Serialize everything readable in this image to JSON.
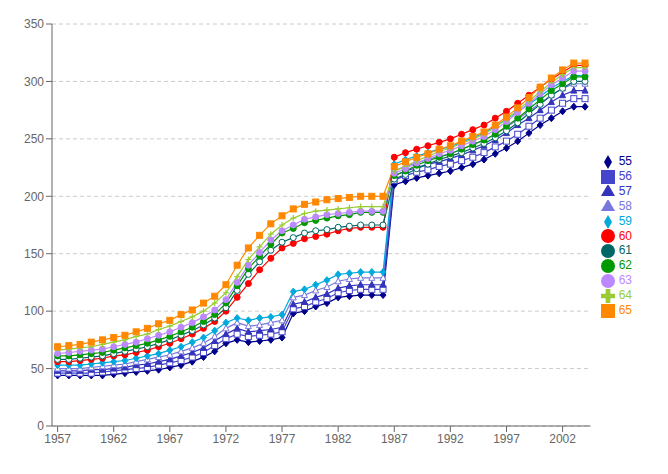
{
  "chart_data": {
    "type": "line",
    "grid": true,
    "legend": "right",
    "xlim": [
      1956.5,
      2004.5
    ],
    "xticks": [
      1957,
      1962,
      1967,
      1972,
      1977,
      1982,
      1987,
      1992,
      1997,
      2002
    ],
    "ylim": [
      0,
      350
    ],
    "yticks": [
      0,
      50,
      100,
      150,
      200,
      250,
      300,
      350
    ],
    "x": [
      1957,
      1958,
      1959,
      1960,
      1961,
      1962,
      1963,
      1964,
      1965,
      1966,
      1967,
      1968,
      1969,
      1970,
      1971,
      1972,
      1973,
      1974,
      1975,
      1976,
      1977,
      1978,
      1979,
      1980,
      1981,
      1982,
      1983,
      1984,
      1985,
      1986,
      1987,
      1988,
      1989,
      1990,
      1991,
      1992,
      1993,
      1994,
      1995,
      1996,
      1997,
      1998,
      1999,
      2000,
      2001,
      2002,
      2003,
      2004
    ],
    "series": [
      {
        "name": "55",
        "color": "#00008B",
        "marker": "diamond",
        "values": [
          44,
          44,
          44,
          44,
          44,
          45,
          46,
          47,
          48,
          49,
          51,
          53,
          56,
          60,
          65,
          72,
          75,
          73,
          74,
          75,
          77,
          98,
          100,
          104,
          107,
          112,
          113,
          114,
          114,
          114,
          210,
          213,
          216,
          218,
          220,
          222,
          225,
          228,
          232,
          237,
          242,
          248,
          255,
          262,
          268,
          274,
          278,
          278
        ]
      },
      {
        "name": "56",
        "color": "#4444CC",
        "marker": "square_open",
        "values": [
          46,
          46,
          46,
          46,
          47,
          48,
          49,
          50,
          51,
          53,
          55,
          57,
          60,
          64,
          70,
          76,
          80,
          78,
          79,
          80,
          82,
          102,
          104,
          108,
          111,
          116,
          118,
          119,
          119,
          119,
          214,
          218,
          221,
          223,
          226,
          228,
          231,
          234,
          238,
          243,
          248,
          254,
          261,
          268,
          275,
          281,
          285,
          285
        ]
      },
      {
        "name": "57",
        "color": "#3333BB",
        "marker": "triangle",
        "values": [
          48,
          48,
          48,
          49,
          49,
          50,
          51,
          53,
          54,
          56,
          58,
          61,
          64,
          68,
          74,
          80,
          85,
          82,
          83,
          84,
          86,
          106,
          108,
          112,
          115,
          120,
          122,
          123,
          123,
          123,
          218,
          222,
          225,
          228,
          230,
          233,
          236,
          240,
          244,
          249,
          255,
          262,
          268,
          275,
          282,
          288,
          292,
          292
        ]
      },
      {
        "name": "58",
        "color": "#7777DD",
        "marker": "triangle_open",
        "values": [
          50,
          50,
          50,
          51,
          52,
          53,
          54,
          56,
          58,
          60,
          62,
          65,
          68,
          72,
          78,
          85,
          90,
          87,
          88,
          90,
          92,
          112,
          114,
          118,
          121,
          126,
          128,
          129,
          129,
          129,
          222,
          226,
          229,
          232,
          235,
          237,
          241,
          245,
          249,
          254,
          260,
          267,
          274,
          281,
          288,
          294,
          298,
          298
        ]
      },
      {
        "name": "59",
        "color": "#00AADD",
        "marker": "diamond",
        "values": [
          53,
          53,
          53,
          54,
          55,
          56,
          57,
          59,
          61,
          63,
          66,
          69,
          73,
          77,
          83,
          90,
          94,
          92,
          94,
          95,
          97,
          117,
          119,
          123,
          127,
          132,
          133,
          134,
          134,
          134,
          228,
          232,
          235,
          238,
          241,
          243,
          247,
          251,
          255,
          261,
          267,
          274,
          280,
          287,
          294,
          300,
          305,
          305
        ]
      },
      {
        "name": "60",
        "color": "#FF0000",
        "marker": "circle",
        "values": [
          56,
          56,
          57,
          58,
          59,
          61,
          62,
          64,
          66,
          69,
          72,
          76,
          80,
          85,
          91,
          100,
          112,
          124,
          136,
          146,
          155,
          159,
          163,
          165,
          167,
          170,
          172,
          173,
          173,
          173,
          234,
          238,
          241,
          244,
          247,
          250,
          254,
          258,
          262,
          268,
          274,
          281,
          288,
          295,
          302,
          308,
          314,
          314
        ]
      },
      {
        "name": "61",
        "color": "#006666",
        "marker": "circle_open",
        "values": [
          58,
          58,
          59,
          60,
          61,
          63,
          65,
          67,
          69,
          72,
          75,
          79,
          83,
          88,
          94,
          103,
          118,
          132,
          143,
          153,
          160,
          164,
          168,
          170,
          171,
          173,
          174,
          175,
          175,
          175,
          215,
          219,
          224,
          228,
          232,
          235,
          238,
          242,
          246,
          251,
          257,
          264,
          272,
          280,
          288,
          294,
          300,
          300
        ]
      },
      {
        "name": "62",
        "color": "#009900",
        "marker": "circle",
        "values": [
          61,
          61,
          62,
          63,
          64,
          66,
          68,
          70,
          72,
          75,
          78,
          82,
          86,
          91,
          97,
          107,
          122,
          137,
          148,
          158,
          168,
          172,
          177,
          179,
          181,
          183,
          184,
          186,
          186,
          186,
          218,
          222,
          227,
          231,
          234,
          237,
          241,
          245,
          249,
          254,
          261,
          268,
          276,
          284,
          292,
          298,
          304,
          304
        ]
      },
      {
        "name": "63",
        "color": "#BB88FF",
        "marker": "circle",
        "values": [
          63,
          64,
          65,
          66,
          67,
          69,
          71,
          73,
          76,
          79,
          82,
          86,
          90,
          95,
          101,
          110,
          125,
          140,
          151,
          162,
          170,
          175,
          180,
          182,
          184,
          185,
          186,
          187,
          187,
          187,
          220,
          224,
          229,
          233,
          237,
          240,
          244,
          248,
          252,
          258,
          265,
          273,
          281,
          289,
          297,
          303,
          309,
          309
        ]
      },
      {
        "name": "64",
        "color": "#99CC33",
        "marker": "plus",
        "values": [
          66,
          67,
          68,
          69,
          71,
          73,
          75,
          78,
          80,
          84,
          87,
          91,
          95,
          100,
          107,
          116,
          130,
          145,
          156,
          167,
          175,
          181,
          185,
          187,
          188,
          189,
          190,
          191,
          191,
          191,
          222,
          226,
          231,
          235,
          239,
          242,
          246,
          250,
          254,
          260,
          267,
          275,
          283,
          291,
          299,
          306,
          312,
          312
        ]
      },
      {
        "name": "65",
        "color": "#FF8800",
        "marker": "square",
        "values": [
          69,
          70,
          71,
          73,
          75,
          77,
          79,
          82,
          85,
          89,
          92,
          97,
          101,
          107,
          113,
          123,
          140,
          155,
          166,
          176,
          183,
          189,
          193,
          195,
          197,
          198,
          199,
          200,
          200,
          200,
          226,
          230,
          234,
          237,
          241,
          244,
          248,
          252,
          256,
          262,
          269,
          277,
          286,
          295,
          303,
          310,
          316,
          316
        ]
      }
    ]
  }
}
